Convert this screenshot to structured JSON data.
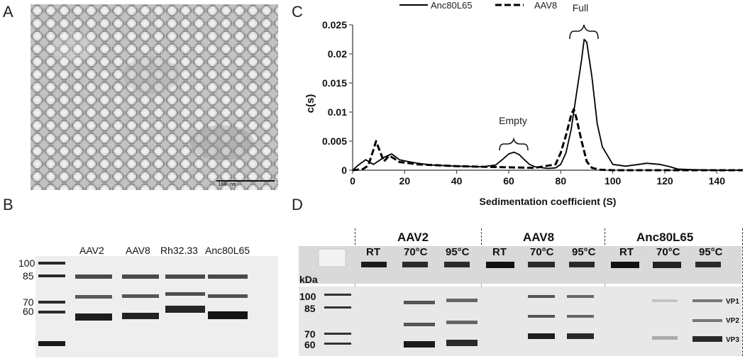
{
  "panels": {
    "a": {
      "letter": "A",
      "scale_bar_label": "100 nm"
    },
    "b": {
      "letter": "B",
      "ladder_labels": [
        "100",
        "85",
        "70",
        "60"
      ],
      "lane_labels": [
        "AAV2",
        "AAV8",
        "Rh32.33",
        "Anc80L65"
      ]
    },
    "c": {
      "letter": "C",
      "ylabel": "c(s)",
      "xlabel": "Sedimentation coefficient (S)",
      "annotation_empty": "Empty",
      "annotation_full": "Full"
    },
    "d": {
      "letter": "D",
      "group_labels": [
        "AAV2",
        "AAV8",
        "Anc80L65"
      ],
      "conditions": [
        "RT",
        "70°C",
        "95°C"
      ],
      "kda_label": "kDa",
      "ladder_labels": [
        "100",
        "85",
        "70",
        "60"
      ],
      "vp_labels": [
        "VP1",
        "VP2",
        "VP3"
      ]
    }
  },
  "chart_data": {
    "type": "line",
    "title": "",
    "xlabel": "Sedimentation coefficient (S)",
    "ylabel": "c(s)",
    "xlim": [
      0,
      150
    ],
    "ylim": [
      0,
      0.025
    ],
    "xticks": [
      0,
      20,
      40,
      60,
      80,
      100,
      120,
      140
    ],
    "yticks": [
      0,
      0.005,
      0.01,
      0.015,
      0.02,
      0.025
    ],
    "ytick_labels": [
      "0",
      "0.005",
      "0.01",
      "0.015",
      "0.02",
      "0.025"
    ],
    "legend_position": "top",
    "series": [
      {
        "name": "Anc80L65",
        "style": "solid",
        "x": [
          0,
          2,
          5,
          8,
          10,
          12,
          15,
          18,
          20,
          25,
          30,
          40,
          50,
          55,
          58,
          60,
          62,
          64,
          66,
          68,
          70,
          75,
          78,
          80,
          82,
          84,
          86,
          88,
          89,
          90,
          92,
          94,
          96,
          100,
          105,
          110,
          113,
          118,
          122,
          125,
          130,
          140,
          150
        ],
        "y": [
          0,
          0.0008,
          0.0018,
          0.001,
          0.0016,
          0.0022,
          0.0028,
          0.0018,
          0.0016,
          0.0012,
          0.0009,
          0.0007,
          0.0006,
          0.0009,
          0.002,
          0.0028,
          0.0031,
          0.0027,
          0.0018,
          0.001,
          0.0006,
          0.0003,
          0.0004,
          0.001,
          0.003,
          0.007,
          0.013,
          0.019,
          0.0225,
          0.022,
          0.016,
          0.008,
          0.004,
          0.001,
          0.0007,
          0.001,
          0.0012,
          0.001,
          0.0006,
          0.0002,
          0.0001,
          0,
          0
        ]
      },
      {
        "name": "AAV8",
        "style": "dashed",
        "x": [
          0,
          4,
          6,
          8,
          9,
          10,
          12,
          14,
          16,
          18,
          20,
          22,
          25,
          30,
          40,
          50,
          60,
          70,
          78,
          80,
          82,
          84,
          85,
          86,
          88,
          90,
          92,
          95,
          100,
          150
        ],
        "y": [
          0,
          0.0002,
          0.0008,
          0.0035,
          0.005,
          0.0038,
          0.0015,
          0.0025,
          0.002,
          0.0014,
          0.0013,
          0.0012,
          0.001,
          0.0009,
          0.0007,
          0.0006,
          0.0005,
          0.0004,
          0.001,
          0.003,
          0.006,
          0.0095,
          0.0105,
          0.009,
          0.005,
          0.0015,
          0.0004,
          0.0001,
          0,
          0
        ]
      }
    ]
  }
}
